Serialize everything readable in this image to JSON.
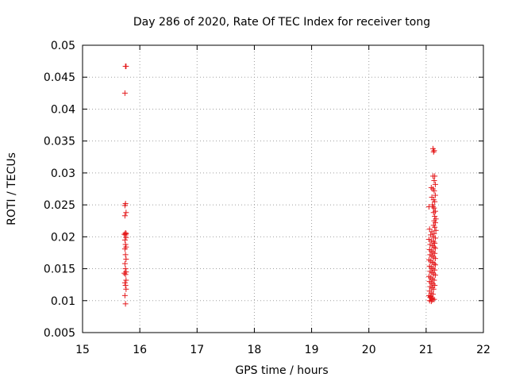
{
  "chart_data": {
    "type": "scatter",
    "title": "Day 286 of 2020, Rate Of TEC Index for receiver tong",
    "xlabel": "GPS time / hours",
    "ylabel": "ROTI / TECUs",
    "xlim": [
      15,
      22
    ],
    "ylim": [
      0.005,
      0.05
    ],
    "xticks": [
      "15",
      "16",
      "17",
      "18",
      "19",
      "20",
      "21",
      "22"
    ],
    "yticks": [
      "0.005",
      "0.01",
      "0.015",
      "0.02",
      "0.025",
      "0.03",
      "0.035",
      "0.04",
      "0.045",
      "0.05"
    ],
    "grid": true,
    "marker": "+",
    "color": "#e41a1c",
    "series": [
      {
        "x": [
          15.75,
          15.76,
          15.74,
          15.75,
          15.74,
          15.76,
          15.74,
          15.75,
          15.76,
          15.73,
          15.75,
          15.76,
          15.74,
          15.75,
          15.76,
          15.74,
          15.75,
          15.76,
          15.74,
          15.75,
          15.76,
          15.73,
          15.75,
          15.76,
          15.74,
          15.75,
          15.76,
          15.74,
          15.75
        ],
        "y": [
          0.0467,
          0.0467,
          0.0425,
          0.0252,
          0.0249,
          0.0238,
          0.0233,
          0.0206,
          0.0205,
          0.0204,
          0.0203,
          0.0199,
          0.0195,
          0.0188,
          0.0184,
          0.0181,
          0.0172,
          0.0165,
          0.0158,
          0.015,
          0.0145,
          0.0143,
          0.0141,
          0.0132,
          0.0128,
          0.0124,
          0.0118,
          0.0108,
          0.0095
        ]
      },
      {
        "x": [
          21.12,
          21.14,
          21.13,
          21.12,
          21.15,
          21.14,
          21.16,
          21.09,
          21.12,
          21.14,
          21.16,
          21.1,
          21.13,
          21.15,
          21.11,
          21.12,
          21.14,
          21.16,
          21.13,
          21.05,
          21.15,
          21.17,
          21.14,
          21.16,
          21.13,
          21.15,
          21.06,
          21.17,
          21.1,
          21.14,
          21.08,
          21.12,
          21.16,
          21.05,
          21.09,
          21.13,
          21.15,
          21.07,
          21.11,
          21.14,
          21.16,
          21.06,
          21.09,
          21.12,
          21.15,
          21.07,
          21.1,
          21.13,
          21.16,
          21.05,
          21.08,
          21.11,
          21.14,
          21.16,
          21.06,
          21.09,
          21.12,
          21.15,
          21.07,
          21.1,
          21.13,
          21.16,
          21.05,
          21.08,
          21.11,
          21.14,
          21.06,
          21.09,
          21.12,
          21.15,
          21.07,
          21.1,
          21.13,
          21.06,
          21.09,
          21.12,
          21.05,
          21.08,
          21.11,
          21.14,
          21.06,
          21.09,
          21.07,
          21.1,
          21.08,
          21.11
        ],
        "y": [
          0.0338,
          0.0335,
          0.0333,
          0.0295,
          0.0295,
          0.0288,
          0.0282,
          0.0277,
          0.0275,
          0.0272,
          0.0265,
          0.0262,
          0.0258,
          0.0255,
          0.025,
          0.0247,
          0.0245,
          0.024,
          0.0238,
          0.0247,
          0.0232,
          0.0228,
          0.0225,
          0.0222,
          0.0218,
          0.0215,
          0.0212,
          0.021,
          0.0208,
          0.0205,
          0.0203,
          0.02,
          0.0198,
          0.0196,
          0.0194,
          0.0192,
          0.019,
          0.0188,
          0.0186,
          0.0184,
          0.0182,
          0.018,
          0.0178,
          0.0176,
          0.0174,
          0.0172,
          0.017,
          0.0168,
          0.0166,
          0.0164,
          0.0162,
          0.016,
          0.0158,
          0.0156,
          0.0154,
          0.0152,
          0.015,
          0.0148,
          0.0146,
          0.0144,
          0.0142,
          0.014,
          0.0138,
          0.0136,
          0.0134,
          0.0132,
          0.013,
          0.0128,
          0.0126,
          0.0124,
          0.0122,
          0.012,
          0.0118,
          0.0115,
          0.0112,
          0.011,
          0.0108,
          0.0106,
          0.0104,
          0.0102,
          0.01,
          0.0099,
          0.0105,
          0.0103,
          0.0107,
          0.0101
        ]
      }
    ]
  }
}
